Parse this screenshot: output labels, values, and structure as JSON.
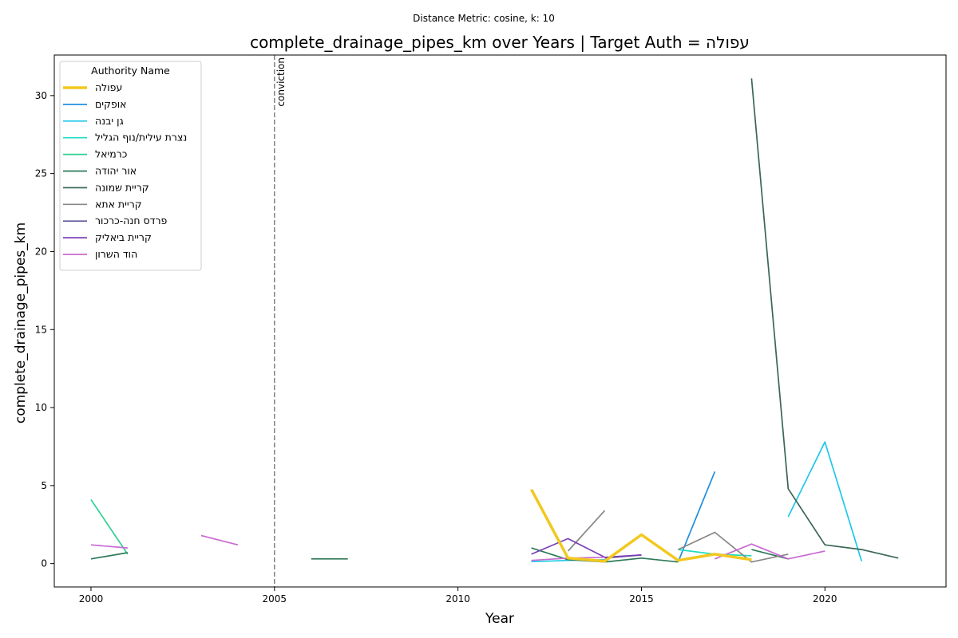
{
  "chart_data": {
    "type": "line",
    "suptitle": "Distance Metric: cosine, k: 10",
    "title": "complete_drainage_pipes_km over Years | Target Auth = עפולה",
    "xlabel": "Year",
    "ylabel": "complete_drainage_pipes_km",
    "xlim": [
      1999,
      2023.3
    ],
    "ylim": [
      -1.5,
      32.6
    ],
    "xticks": [
      2000,
      2005,
      2010,
      2015,
      2020
    ],
    "yticks": [
      0,
      5,
      10,
      15,
      20,
      25,
      30
    ],
    "grid": false,
    "legend": {
      "title": "Authority Name",
      "placement": "top-left"
    },
    "annotation": {
      "x": 2005,
      "label": "conviction",
      "style": "dashed",
      "color": "#808080"
    },
    "series": [
      {
        "name": "עפולה",
        "color": "#f2c81f",
        "target": true,
        "points": [
          [
            2012,
            4.75
          ],
          [
            2013,
            0.35
          ],
          [
            2014,
            0.15
          ],
          [
            2015,
            1.85
          ],
          [
            2016,
            0.2
          ],
          [
            2017,
            0.6
          ],
          [
            2018,
            0.25
          ]
        ]
      },
      {
        "name": "אופקים",
        "color": "#1f8ee0",
        "points": [
          [
            2016,
            0.1
          ],
          [
            2017,
            5.9
          ]
        ]
      },
      {
        "name": "גן יבנה",
        "color": "#1fc8e8",
        "points": [
          [
            2012,
            0.12
          ],
          [
            2013,
            0.2
          ],
          [
            2014,
            0.25
          ],
          [
            null,
            null
          ],
          [
            2019,
            3.0
          ],
          [
            2020,
            7.8
          ],
          [
            2021,
            0.15
          ]
        ]
      },
      {
        "name": "נצרת עילית/נוף הגליל",
        "color": "#1fdcc0",
        "points": [
          [
            2016,
            0.9
          ],
          [
            2017,
            0.6
          ],
          [
            2018,
            0.5
          ]
        ]
      },
      {
        "name": "כרמיאל",
        "color": "#2ed190",
        "points": [
          [
            2000,
            4.1
          ],
          [
            2001,
            0.6
          ]
        ]
      },
      {
        "name": "אור יהודה",
        "color": "#2e7a5a",
        "points": [
          [
            2000,
            0.3
          ],
          [
            2001,
            0.7
          ],
          [
            null,
            null
          ],
          [
            2006,
            0.3
          ],
          [
            2007,
            0.3
          ],
          [
            null,
            null
          ],
          [
            2012,
            1.0
          ],
          [
            2013,
            0.25
          ],
          [
            2014,
            0.1
          ],
          [
            2015,
            0.35
          ],
          [
            2016,
            0.1
          ],
          [
            null,
            null
          ],
          [
            2018,
            0.9
          ],
          [
            2019,
            0.3
          ]
        ]
      },
      {
        "name": "קריית שמונה",
        "color": "#3a6655",
        "points": [
          [
            2018,
            31.1
          ],
          [
            2019,
            4.8
          ],
          [
            2020,
            1.2
          ],
          [
            2021,
            0.9
          ],
          [
            2022,
            0.35
          ]
        ]
      },
      {
        "name": "קריית אתא",
        "color": "#878787",
        "points": [
          [
            2013,
            0.8
          ],
          [
            2014,
            3.4
          ],
          [
            null,
            null
          ],
          [
            2016,
            0.9
          ],
          [
            2017,
            2.0
          ],
          [
            2018,
            0.1
          ],
          [
            2019,
            0.6
          ]
        ]
      },
      {
        "name": "פרדס חנה-כרכור",
        "color": "#5e5a9e",
        "points": [
          [
            2014,
            0.35
          ],
          [
            2015,
            0.55
          ]
        ]
      },
      {
        "name": "קריית ביאליק",
        "color": "#7a3fb5",
        "points": [
          [
            2012,
            0.6
          ],
          [
            2013,
            1.6
          ],
          [
            2014,
            0.4
          ],
          [
            2015,
            0.55
          ]
        ]
      },
      {
        "name": "הוד השרון",
        "color": "#c86ad0",
        "points": [
          [
            2000,
            1.2
          ],
          [
            2001,
            1.0
          ],
          [
            null,
            null
          ],
          [
            2003,
            1.8
          ],
          [
            2004,
            1.2
          ],
          [
            null,
            null
          ],
          [
            2012,
            0.2
          ],
          [
            2013,
            0.35
          ],
          [
            2014,
            0.4
          ],
          [
            null,
            null
          ],
          [
            2017,
            0.3
          ],
          [
            2018,
            1.25
          ],
          [
            2019,
            0.3
          ],
          [
            2020,
            0.8
          ]
        ]
      }
    ]
  }
}
